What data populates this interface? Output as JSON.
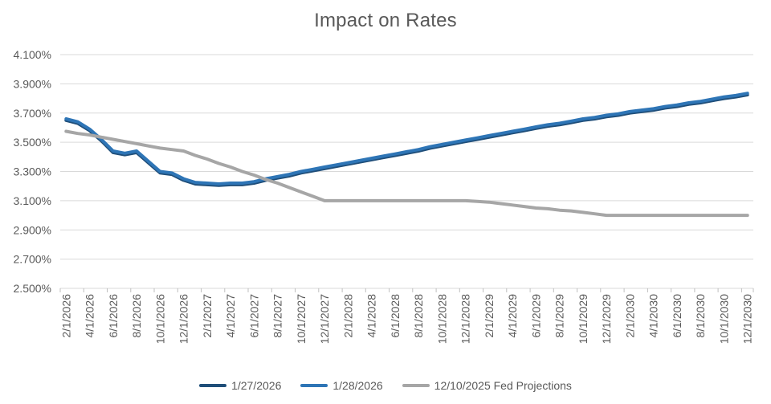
{
  "chart_data": {
    "type": "line",
    "title": "Impact on Rates",
    "xlabel": "",
    "ylabel": "",
    "ylim": [
      2.5,
      4.1
    ],
    "ytick_step": 0.2,
    "ytick_labels": [
      "4.100%",
      "3.900%",
      "3.700%",
      "3.500%",
      "3.300%",
      "3.100%",
      "2.900%",
      "2.700%",
      "2.500%"
    ],
    "x_tick_every": 2,
    "x_label_rotation": -90,
    "grid": "horizontal",
    "legend_position": "bottom",
    "colors": {
      "gridline": "#D9D9D9",
      "tick": "#BFBFBF",
      "title_text": "#595959",
      "axis_text": "#595959",
      "background": "#FFFFFF"
    },
    "x": [
      "2/1/2026",
      "3/1/2026",
      "4/1/2026",
      "5/1/2026",
      "6/1/2026",
      "7/1/2026",
      "8/1/2026",
      "9/1/2026",
      "10/1/2026",
      "11/1/2026",
      "12/1/2026",
      "1/1/2027",
      "2/1/2027",
      "3/1/2027",
      "4/1/2027",
      "5/1/2027",
      "6/1/2027",
      "7/1/2027",
      "8/1/2027",
      "9/1/2027",
      "10/1/2027",
      "11/1/2027",
      "12/1/2027",
      "1/1/2028",
      "2/1/2028",
      "3/1/2028",
      "4/1/2028",
      "5/1/2028",
      "6/1/2028",
      "7/1/2028",
      "8/1/2028",
      "9/1/2028",
      "10/1/2028",
      "11/1/2028",
      "12/1/2028",
      "1/1/2029",
      "2/1/2029",
      "3/1/2029",
      "4/1/2029",
      "5/1/2029",
      "6/1/2029",
      "7/1/2029",
      "8/1/2029",
      "9/1/2029",
      "10/1/2029",
      "11/1/2029",
      "12/1/2029",
      "1/1/2030",
      "2/1/2030",
      "3/1/2030",
      "4/1/2030",
      "5/1/2030",
      "6/1/2030",
      "7/1/2030",
      "8/1/2030",
      "9/1/2030",
      "10/1/2030",
      "11/1/2030",
      "12/1/2030"
    ],
    "series": [
      {
        "name": "1/27/2026",
        "color": "#1F4E79",
        "values": [
          3.65,
          3.63,
          3.58,
          3.51,
          3.43,
          3.415,
          3.43,
          3.36,
          3.29,
          3.28,
          3.24,
          3.215,
          3.21,
          3.205,
          3.21,
          3.21,
          3.22,
          3.24,
          3.255,
          3.27,
          3.29,
          3.305,
          3.32,
          3.335,
          3.35,
          3.365,
          3.38,
          3.395,
          3.41,
          3.425,
          3.44,
          3.46,
          3.475,
          3.49,
          3.505,
          3.52,
          3.535,
          3.55,
          3.565,
          3.58,
          3.595,
          3.61,
          3.62,
          3.635,
          3.65,
          3.66,
          3.675,
          3.685,
          3.7,
          3.71,
          3.72,
          3.735,
          3.745,
          3.76,
          3.77,
          3.785,
          3.8,
          3.81,
          3.825
        ]
      },
      {
        "name": "1/28/2026",
        "color": "#2E75B6",
        "values": [
          3.66,
          3.64,
          3.59,
          3.52,
          3.44,
          3.425,
          3.44,
          3.37,
          3.3,
          3.29,
          3.25,
          3.225,
          3.22,
          3.215,
          3.22,
          3.22,
          3.23,
          3.25,
          3.265,
          3.28,
          3.3,
          3.315,
          3.33,
          3.345,
          3.36,
          3.375,
          3.39,
          3.405,
          3.42,
          3.435,
          3.45,
          3.47,
          3.485,
          3.5,
          3.515,
          3.53,
          3.545,
          3.56,
          3.575,
          3.59,
          3.605,
          3.62,
          3.63,
          3.645,
          3.66,
          3.67,
          3.685,
          3.695,
          3.71,
          3.72,
          3.73,
          3.745,
          3.755,
          3.77,
          3.78,
          3.795,
          3.81,
          3.82,
          3.835
        ]
      },
      {
        "name": "12/10/2025 Fed Projections",
        "color": "#A6A6A6",
        "values": [
          3.575,
          3.56,
          3.55,
          3.535,
          3.52,
          3.505,
          3.49,
          3.475,
          3.46,
          3.45,
          3.44,
          3.41,
          3.385,
          3.355,
          3.33,
          3.3,
          3.275,
          3.245,
          3.22,
          3.19,
          3.16,
          3.13,
          3.1,
          3.1,
          3.1,
          3.1,
          3.1,
          3.1,
          3.1,
          3.1,
          3.1,
          3.1,
          3.1,
          3.1,
          3.1,
          3.095,
          3.09,
          3.08,
          3.07,
          3.06,
          3.05,
          3.045,
          3.035,
          3.03,
          3.02,
          3.01,
          3.0,
          3.0,
          3.0,
          3.0,
          3.0,
          3.0,
          3.0,
          3.0,
          3.0,
          3.0,
          3.0,
          3.0,
          3.0
        ]
      }
    ]
  }
}
